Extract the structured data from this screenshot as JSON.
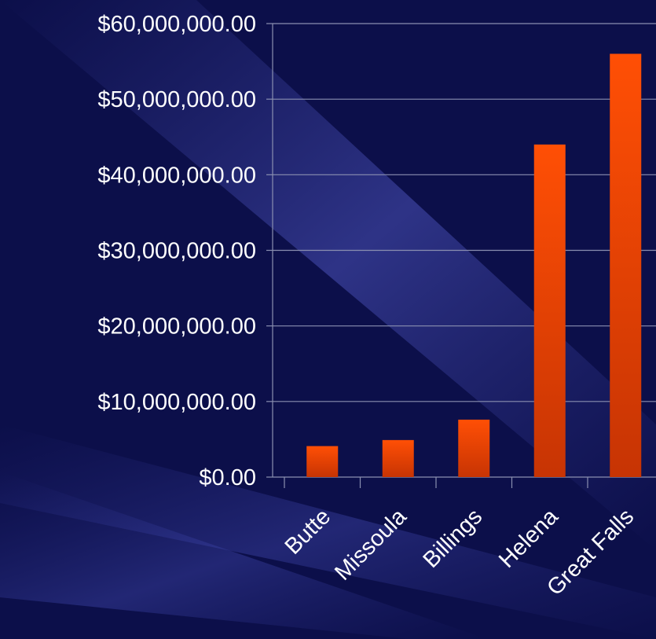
{
  "chart_data": {
    "type": "bar",
    "categories": [
      "Butte",
      "Missoula",
      "Billings",
      "Helena",
      "Great Falls"
    ],
    "values": [
      4100000,
      4900000,
      7600000,
      44000000,
      56000000
    ],
    "y_tick_labels": [
      "$0.00",
      "$10,000,000.00",
      "$20,000,000.00",
      "$30,000,000.00",
      "$40,000,000.00",
      "$50,000,000.00",
      "$60,000,000.00"
    ],
    "ylim": [
      0,
      60000000
    ],
    "grid": true,
    "legend": "none",
    "title": "",
    "xlabel": "",
    "ylabel": ""
  },
  "colors": {
    "background": "#0c0f4a",
    "bar_top": "#ff4f05",
    "bar_bottom": "#c73404",
    "gridline": "#8a8fb0",
    "text": "#ffffff"
  }
}
